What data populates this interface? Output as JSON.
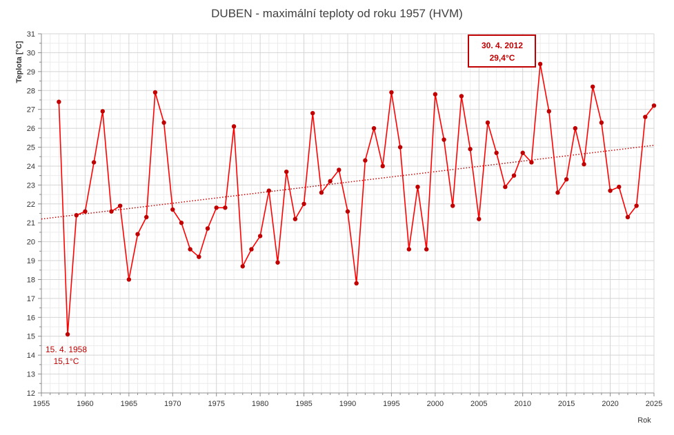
{
  "chart_data": {
    "type": "line",
    "title": "DUBEN - maximální teploty od roku 1957 (HVM)",
    "xlabel": "Rok",
    "ylabel": "Teplota [°C]",
    "xlim": [
      1955,
      2025
    ],
    "ylim": [
      12,
      31
    ],
    "x_ticks": [
      "1955",
      "1960",
      "1965",
      "1970",
      "1975",
      "1980",
      "1985",
      "1990",
      "1995",
      "2000",
      "2005",
      "2010",
      "2015",
      "2020",
      "2025"
    ],
    "y_ticks": [
      "12",
      "13",
      "14",
      "15",
      "16",
      "17",
      "18",
      "19",
      "20",
      "21",
      "22",
      "23",
      "24",
      "25",
      "26",
      "27",
      "28",
      "29",
      "30",
      "31"
    ],
    "grid": true,
    "line_color": "#ff0000",
    "marker_color": "#c00000",
    "trend_color": "#c00000",
    "series": [
      {
        "x": [
          1957,
          1958,
          1959,
          1960,
          1961,
          1962,
          1963,
          1964,
          1965,
          1966,
          1967,
          1968,
          1969,
          1970,
          1971,
          1972,
          1973,
          1974,
          1975,
          1976,
          1977,
          1978,
          1979,
          1980,
          1981,
          1982,
          1983,
          1984,
          1985,
          1986,
          1987,
          1988,
          1989,
          1990,
          1991,
          1992,
          1993,
          1994,
          1995,
          1996,
          1997,
          1998,
          1999,
          2000,
          2001,
          2002,
          2003,
          2004,
          2005,
          2006,
          2007,
          2008,
          2009,
          2010,
          2011,
          2012,
          2013,
          2014,
          2015,
          2016,
          2017,
          2018,
          2019,
          2020,
          2021,
          2022,
          2023,
          2024,
          2025
        ],
        "values": [
          27.4,
          15.1,
          21.4,
          21.6,
          24.2,
          26.9,
          21.6,
          21.9,
          18.0,
          20.4,
          21.3,
          27.9,
          26.3,
          21.7,
          21.0,
          19.6,
          19.2,
          20.7,
          21.8,
          21.8,
          26.1,
          18.7,
          19.6,
          20.3,
          22.7,
          18.9,
          23.7,
          21.2,
          22.0,
          26.8,
          22.6,
          23.2,
          23.8,
          21.6,
          17.8,
          24.3,
          26.0,
          24.0,
          27.9,
          25.0,
          19.6,
          22.9,
          19.6,
          27.8,
          25.4,
          21.9,
          27.7,
          24.9,
          21.2,
          26.3,
          24.7,
          22.9,
          23.5,
          24.7,
          24.2,
          29.4,
          26.9,
          22.6,
          23.3,
          26.0,
          24.1,
          28.2,
          26.3,
          22.7,
          22.9,
          21.3,
          21.9,
          26.6,
          27.2
        ]
      }
    ],
    "trendline": {
      "style": "dotted",
      "start": [
        1955,
        21.2
      ],
      "end": [
        2025,
        25.1
      ]
    },
    "annotations": [
      {
        "line1": "30. 4. 2012",
        "line2": "29,4°C",
        "boxed": true
      },
      {
        "line1": "15. 4. 1958",
        "line2": "15,1°C",
        "boxed": false
      }
    ]
  }
}
